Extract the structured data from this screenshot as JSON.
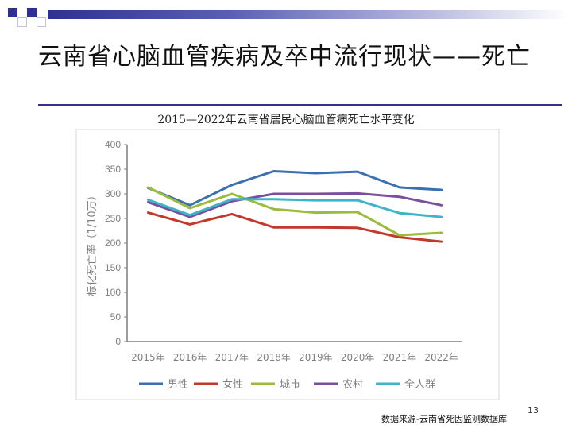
{
  "slide": {
    "title": "云南省心脑血管疾病及卒中流行现状——死亡",
    "page_number": "13",
    "source": "数据来源-云南省死因监测数据库"
  },
  "colors": {
    "accent": "#2e3192",
    "male": "#3a6fb0",
    "female": "#c0392b",
    "urban": "#9bbb3b",
    "rural": "#7b4f9d",
    "all": "#3fb3c9"
  },
  "chart_data": {
    "type": "line",
    "title": "2015—2022年云南省居民心脑血管病死亡水平变化",
    "xlabel": "",
    "ylabel": "标化死亡率（1/10万）",
    "categories": [
      "2015年",
      "2016年",
      "2017年",
      "2018年",
      "2019年",
      "2020年",
      "2021年",
      "2022年"
    ],
    "ylim": [
      0,
      400
    ],
    "yticks": [
      0,
      50,
      100,
      150,
      200,
      250,
      300,
      350,
      400
    ],
    "grid": false,
    "legend_position": "bottom",
    "series": [
      {
        "name": "男性",
        "color": "#3a6fb0",
        "values": [
          312,
          277,
          318,
          346,
          342,
          345,
          313,
          308
        ]
      },
      {
        "name": "女性",
        "color": "#c0392b",
        "values": [
          262,
          238,
          259,
          232,
          232,
          231,
          212,
          203
        ]
      },
      {
        "name": "城市",
        "color": "#9bbb3b",
        "values": [
          313,
          271,
          300,
          269,
          262,
          263,
          216,
          221
        ]
      },
      {
        "name": "农村",
        "color": "#7b4f9d",
        "values": [
          283,
          253,
          285,
          300,
          300,
          301,
          294,
          277
        ]
      },
      {
        "name": "全人群",
        "color": "#3fb3c9",
        "values": [
          288,
          257,
          289,
          289,
          287,
          287,
          261,
          253
        ]
      }
    ]
  }
}
